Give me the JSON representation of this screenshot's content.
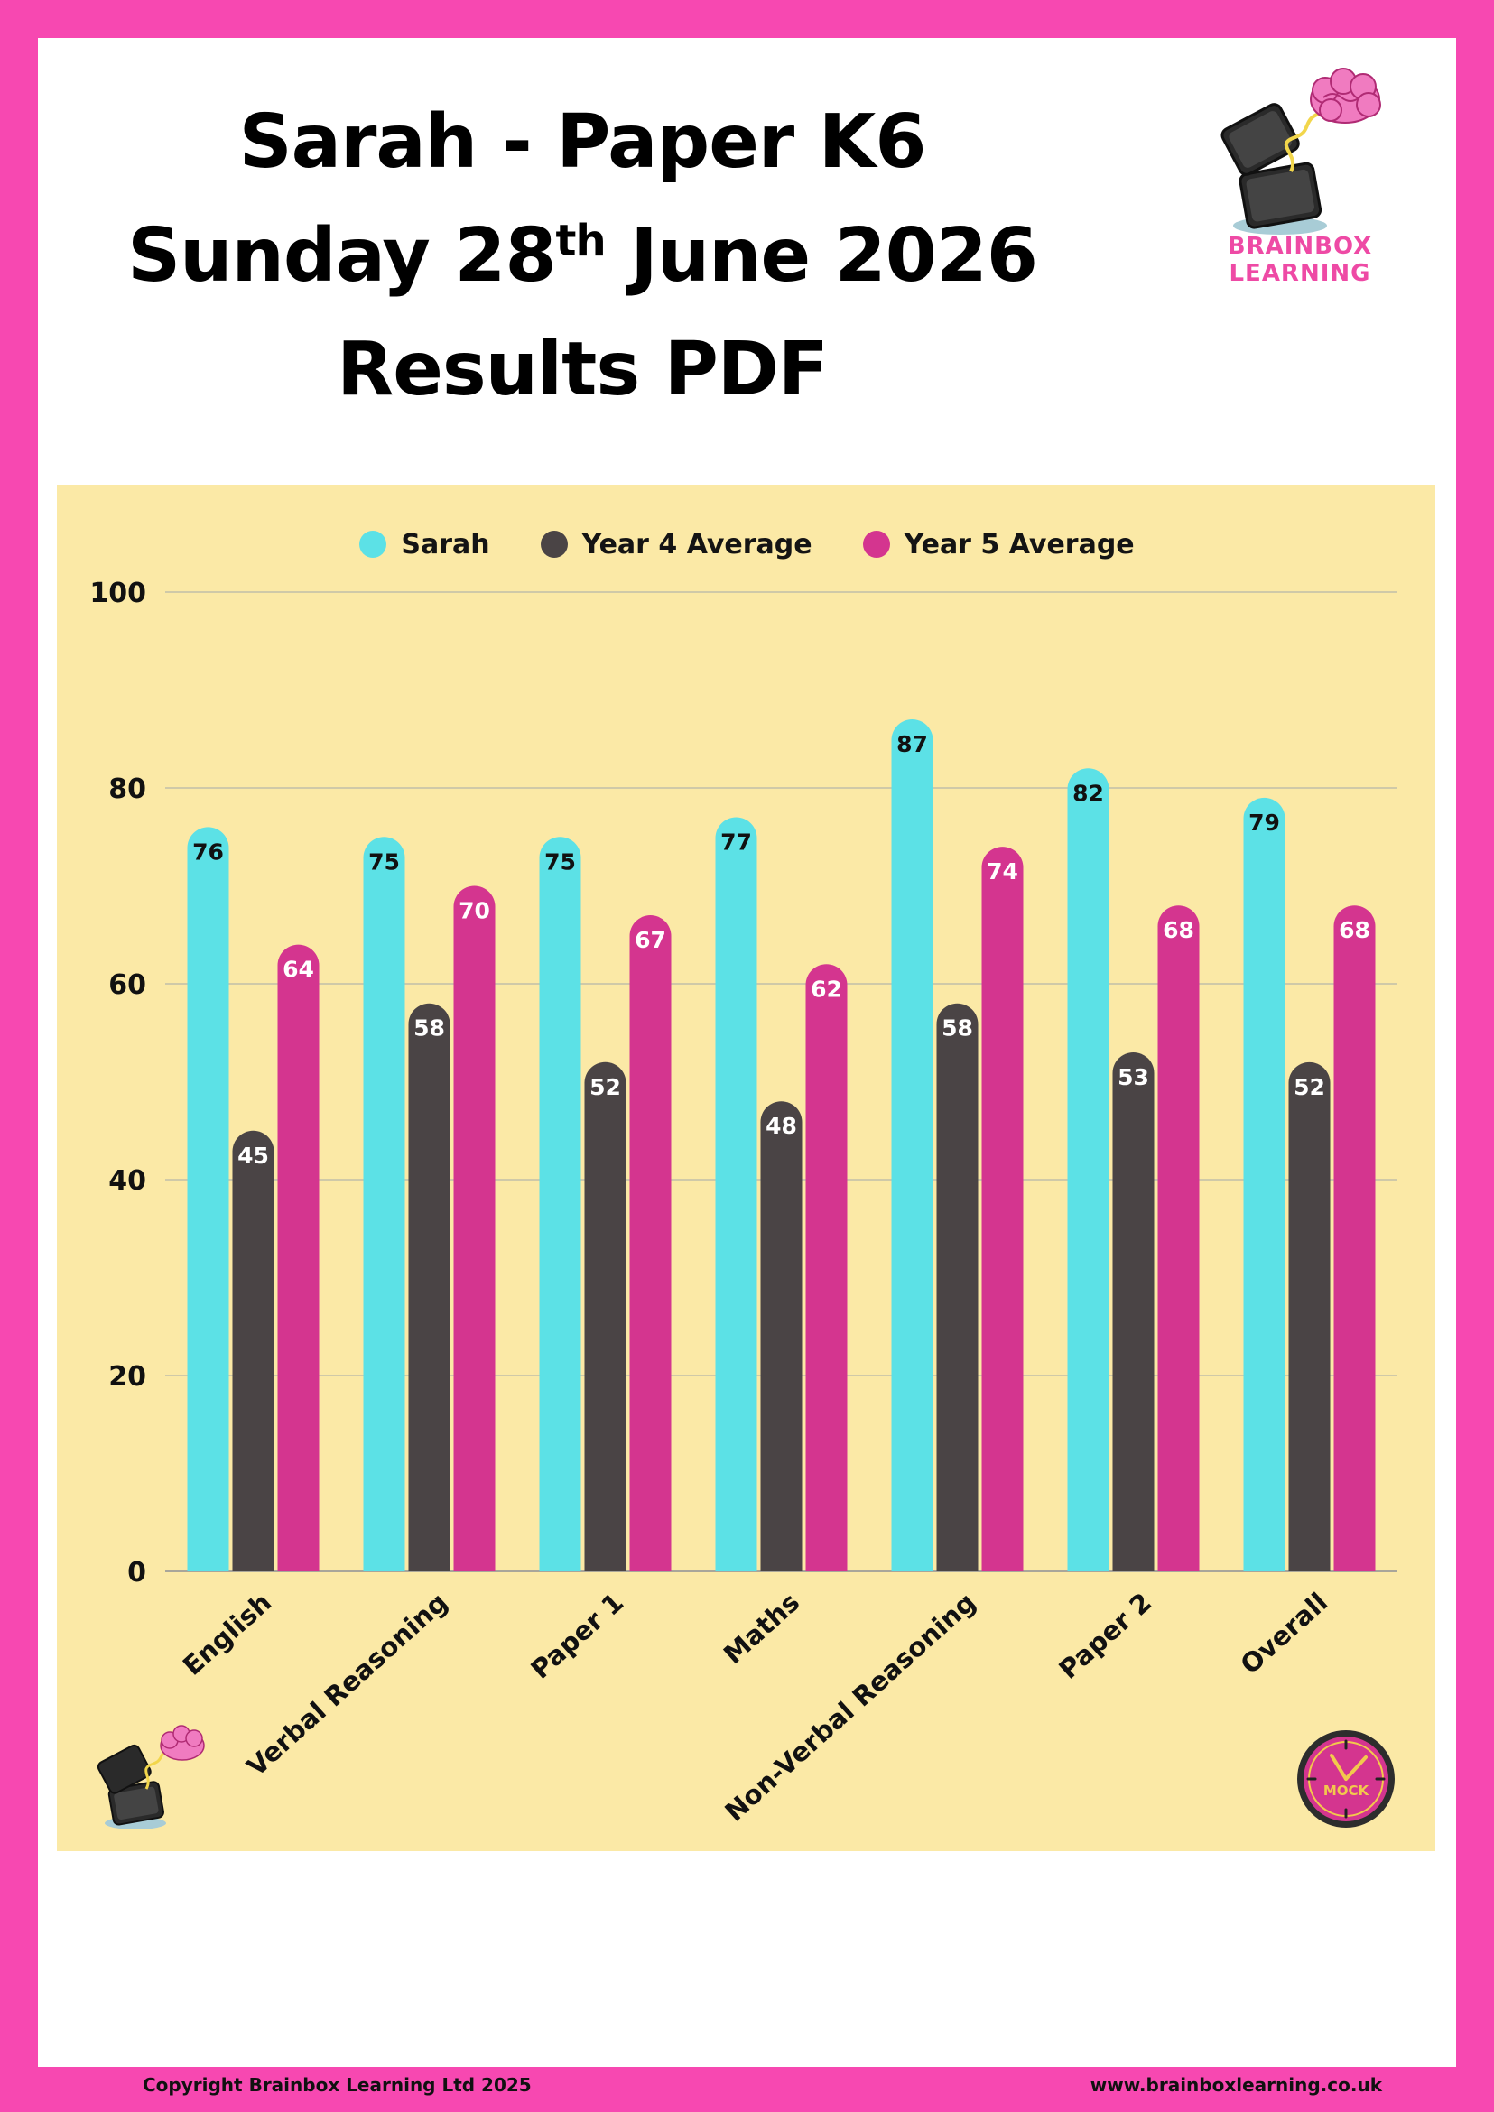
{
  "header": {
    "title_line1": "Sarah - Paper K6",
    "title_line2_pre": "Sunday 28",
    "title_line2_sup": "th",
    "title_line2_post": " June 2026",
    "title_line3": "Results PDF"
  },
  "brand": {
    "logo_text": "BRAINBOX LEARNING",
    "badge_text": "MOCK",
    "pink": "#f748b1",
    "panel_bg": "#fbe9a6"
  },
  "footer": {
    "copyright": "Copyright Brainbox Learning Ltd 2025",
    "website": "www.brainboxlearning.co.uk"
  },
  "chart_data": {
    "type": "bar",
    "categories": [
      "English",
      "Verbal Reasoning",
      "Paper 1",
      "Maths",
      "Non-Verbal Reasoning",
      "Paper 2",
      "Overall"
    ],
    "series": [
      {
        "name": "Sarah",
        "color": "#5ce1e6",
        "label_color": "#111111",
        "values": [
          76,
          75,
          75,
          77,
          87,
          82,
          79
        ]
      },
      {
        "name": "Year 4 Average",
        "color": "#4a4445",
        "label_color": "#ffffff",
        "values": [
          45,
          58,
          52,
          48,
          58,
          53,
          52
        ]
      },
      {
        "name": "Year 5 Average",
        "color": "#d4358f",
        "label_color": "#ffffff",
        "values": [
          64,
          70,
          67,
          62,
          74,
          68,
          68
        ]
      }
    ],
    "yticks": [
      0,
      20,
      40,
      60,
      80,
      100
    ],
    "ylim": [
      0,
      100
    ],
    "grid": true,
    "legend_position": "top"
  }
}
